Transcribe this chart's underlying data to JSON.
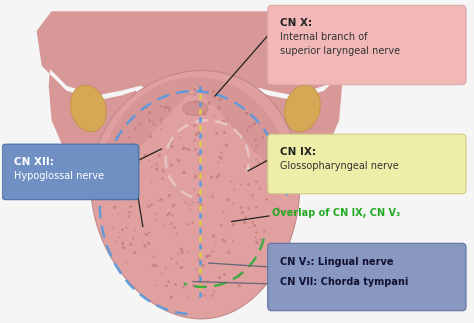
{
  "bg_color": "#f5f5f5",
  "tongue_main_color": "#e8a8a8",
  "tongue_body_color": "#e0a0a0",
  "tongue_posterior_color": "#d89898",
  "tongue_dark_region": "#cc8888",
  "tonsil_color": "#d4a855",
  "tonsil_edge": "#c09040",
  "wing_color": "#d89898",
  "cn_x_box_color": "#f2b8b8",
  "cn_ix_box_color": "#eeeea8",
  "cn_xii_box_color": "#7090c4",
  "cn_v3_box_color": "#8898c0",
  "dot_color": "#c88888",
  "line_color": "#333333",
  "blue_dash_color": "#5599dd",
  "white_dash_color": "#f0d0d0",
  "green_dash_color": "#44aa44",
  "labels": {
    "cn_x_bold": "CN X:",
    "cn_x_rest": "Internal branch of\nsuperior laryngeal nerve",
    "cn_ix_bold": "CN IX:",
    "cn_ix_rest": "Glossopharyngeal nerve",
    "cn_xii_bold": "CN XII:",
    "cn_xii_rest": "Hypoglossal nerve",
    "cn_v3_lingual": "CN V₃: Lingual nerve",
    "cn_vii": "CN VII: Chorda tympani",
    "overlap": "Overlap of CN IX, CN V₃"
  }
}
